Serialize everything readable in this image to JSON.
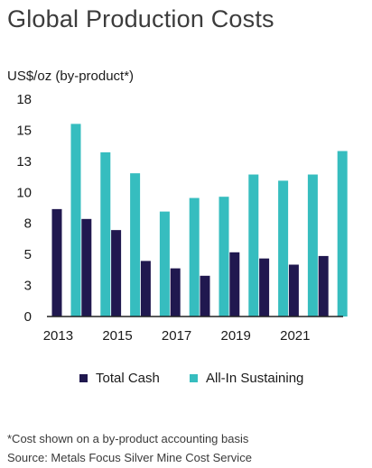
{
  "title": "Global Production Costs",
  "unit_label": "US$/oz (by-product*)",
  "footnote": "*Cost shown on a by-product accounting basis",
  "source": "Source: Metals Focus Silver Mine Cost Service",
  "colors": {
    "total_cash": "#20184f",
    "all_in": "#36bdbf",
    "axis": "#222222"
  },
  "chart_data": {
    "type": "bar",
    "x": [
      2013,
      2014,
      2015,
      2016,
      2017,
      2018,
      2019,
      2020,
      2021,
      2022
    ],
    "x_tick_labels": [
      "2013",
      "2015",
      "2017",
      "2019",
      "2021"
    ],
    "y_tick_labels": [
      "0",
      "3",
      "5",
      "8",
      "10",
      "13",
      "15",
      "18"
    ],
    "ylim": [
      0,
      17.6
    ],
    "series": [
      {
        "name": "Total Cash",
        "values": [
          8.7,
          7.9,
          7.0,
          4.5,
          3.9,
          3.3,
          5.2,
          4.7,
          4.2,
          4.9
        ]
      },
      {
        "name": "All-In Sustaining",
        "values": [
          15.6,
          13.3,
          11.6,
          8.5,
          9.6,
          9.7,
          11.5,
          11.0,
          11.5,
          13.4
        ]
      }
    ],
    "legend_position": "bottom",
    "grid": false
  }
}
